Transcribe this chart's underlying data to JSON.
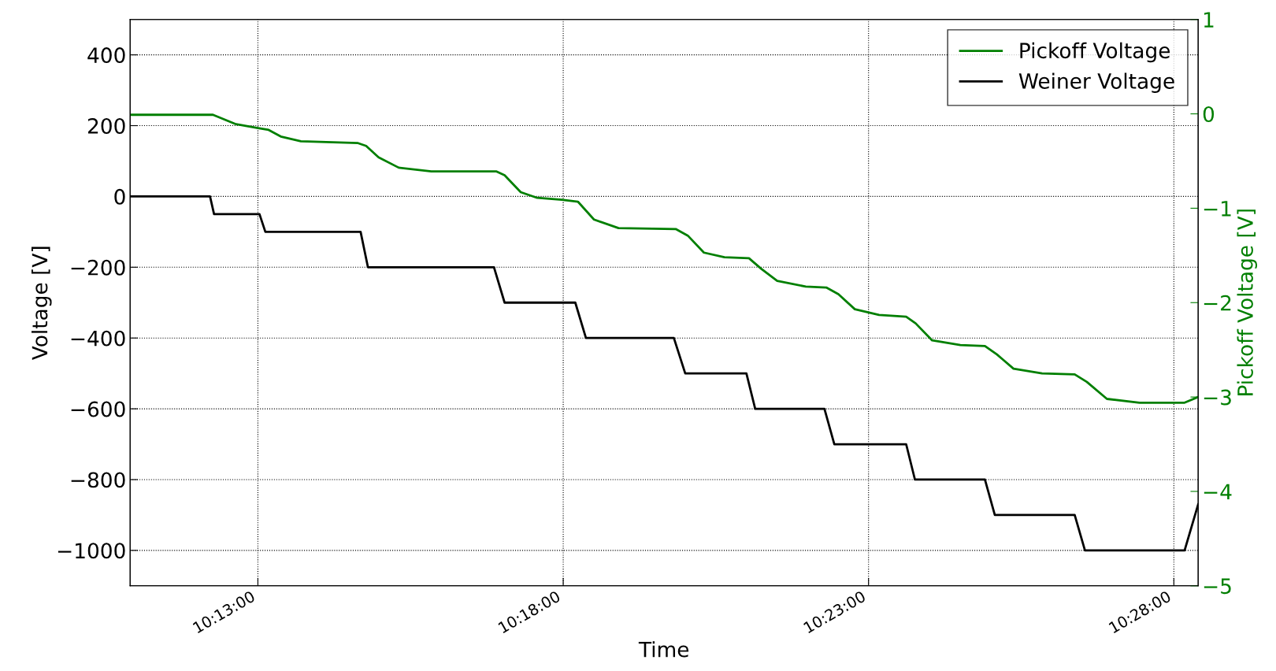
{
  "chart_data": {
    "type": "line",
    "xlabel": "Time",
    "ylabel": "Voltage [V]",
    "y2label": "Pickoff Voltage [V]",
    "xlim": [
      10.1818,
      10.4733
    ],
    "xticks": [
      {
        "value": 10.216667,
        "label": "10:13:00"
      },
      {
        "value": 10.3,
        "label": "10:18:00"
      },
      {
        "value": 10.383333,
        "label": "10:23:00"
      },
      {
        "value": 10.466667,
        "label": "10:28:00"
      }
    ],
    "ylim": [
      -1100,
      500
    ],
    "yticks": [
      {
        "value": -1000,
        "label": "−1000"
      },
      {
        "value": -800,
        "label": "−800"
      },
      {
        "value": -600,
        "label": "−600"
      },
      {
        "value": -400,
        "label": "−400"
      },
      {
        "value": -200,
        "label": "−200"
      },
      0,
      200,
      400
    ],
    "y2lim": [
      -5,
      1
    ],
    "y2ticks": [
      {
        "value": -5,
        "label": "−5"
      },
      {
        "value": -4,
        "label": "−4"
      },
      {
        "value": -3,
        "label": "−3"
      },
      {
        "value": -2,
        "label": "−2"
      },
      {
        "value": -1,
        "label": "−1"
      },
      0,
      1
    ],
    "grid": true,
    "legend": "top right",
    "line_style": "solid",
    "marker": "none",
    "series": [
      {
        "name": "Pickoff Voltage",
        "color": "#007f00",
        "axis": "y2",
        "x": [
          10.1818,
          10.2044,
          10.2107,
          10.2167,
          10.2196,
          10.2229,
          10.2284,
          10.244,
          10.2462,
          10.2496,
          10.2551,
          10.264,
          10.2818,
          10.284,
          10.2884,
          10.2929,
          10.2996,
          10.304,
          10.3084,
          10.3151,
          10.3307,
          10.334,
          10.3384,
          10.344,
          10.3507,
          10.354,
          10.3584,
          10.3662,
          10.3718,
          10.3751,
          10.3796,
          10.3862,
          10.3936,
          10.3962,
          10.4007,
          10.4084,
          10.4151,
          10.4184,
          10.4229,
          10.4307,
          10.4396,
          10.4429,
          10.4484,
          10.4573,
          10.4696,
          10.4733
        ],
        "values": [
          -0.01,
          -0.01,
          -0.11,
          -0.15,
          -0.17,
          -0.24,
          -0.29,
          -0.31,
          -0.34,
          -0.46,
          -0.57,
          -0.61,
          -0.61,
          -0.65,
          -0.83,
          -0.89,
          -0.91,
          -0.93,
          -1.12,
          -1.21,
          -1.22,
          -1.29,
          -1.47,
          -1.52,
          -1.53,
          -1.64,
          -1.77,
          -1.83,
          -1.84,
          -1.91,
          -2.07,
          -2.13,
          -2.15,
          -2.22,
          -2.4,
          -2.45,
          -2.46,
          -2.55,
          -2.7,
          -2.75,
          -2.76,
          -2.84,
          -3.02,
          -3.06,
          -3.06,
          -3.0
        ]
      },
      {
        "name": "Weiner Voltage",
        "color": "#000000",
        "x": [
          10.1818,
          10.2036,
          10.2047,
          10.2171,
          10.2187,
          10.2447,
          10.2467,
          10.2811,
          10.284,
          10.3033,
          10.3062,
          10.3302,
          10.3333,
          10.35,
          10.3524,
          10.3713,
          10.374,
          10.3936,
          10.396,
          10.4151,
          10.4178,
          10.4396,
          10.4424,
          10.4696,
          10.4733
        ],
        "values": [
          0,
          0,
          -50,
          -50,
          -100,
          -100,
          -200,
          -200,
          -300,
          -300,
          -400,
          -400,
          -500,
          -500,
          -600,
          -600,
          -700,
          -700,
          -800,
          -800,
          -900,
          -900,
          -1000,
          -1000,
          -870
        ]
      }
    ]
  }
}
